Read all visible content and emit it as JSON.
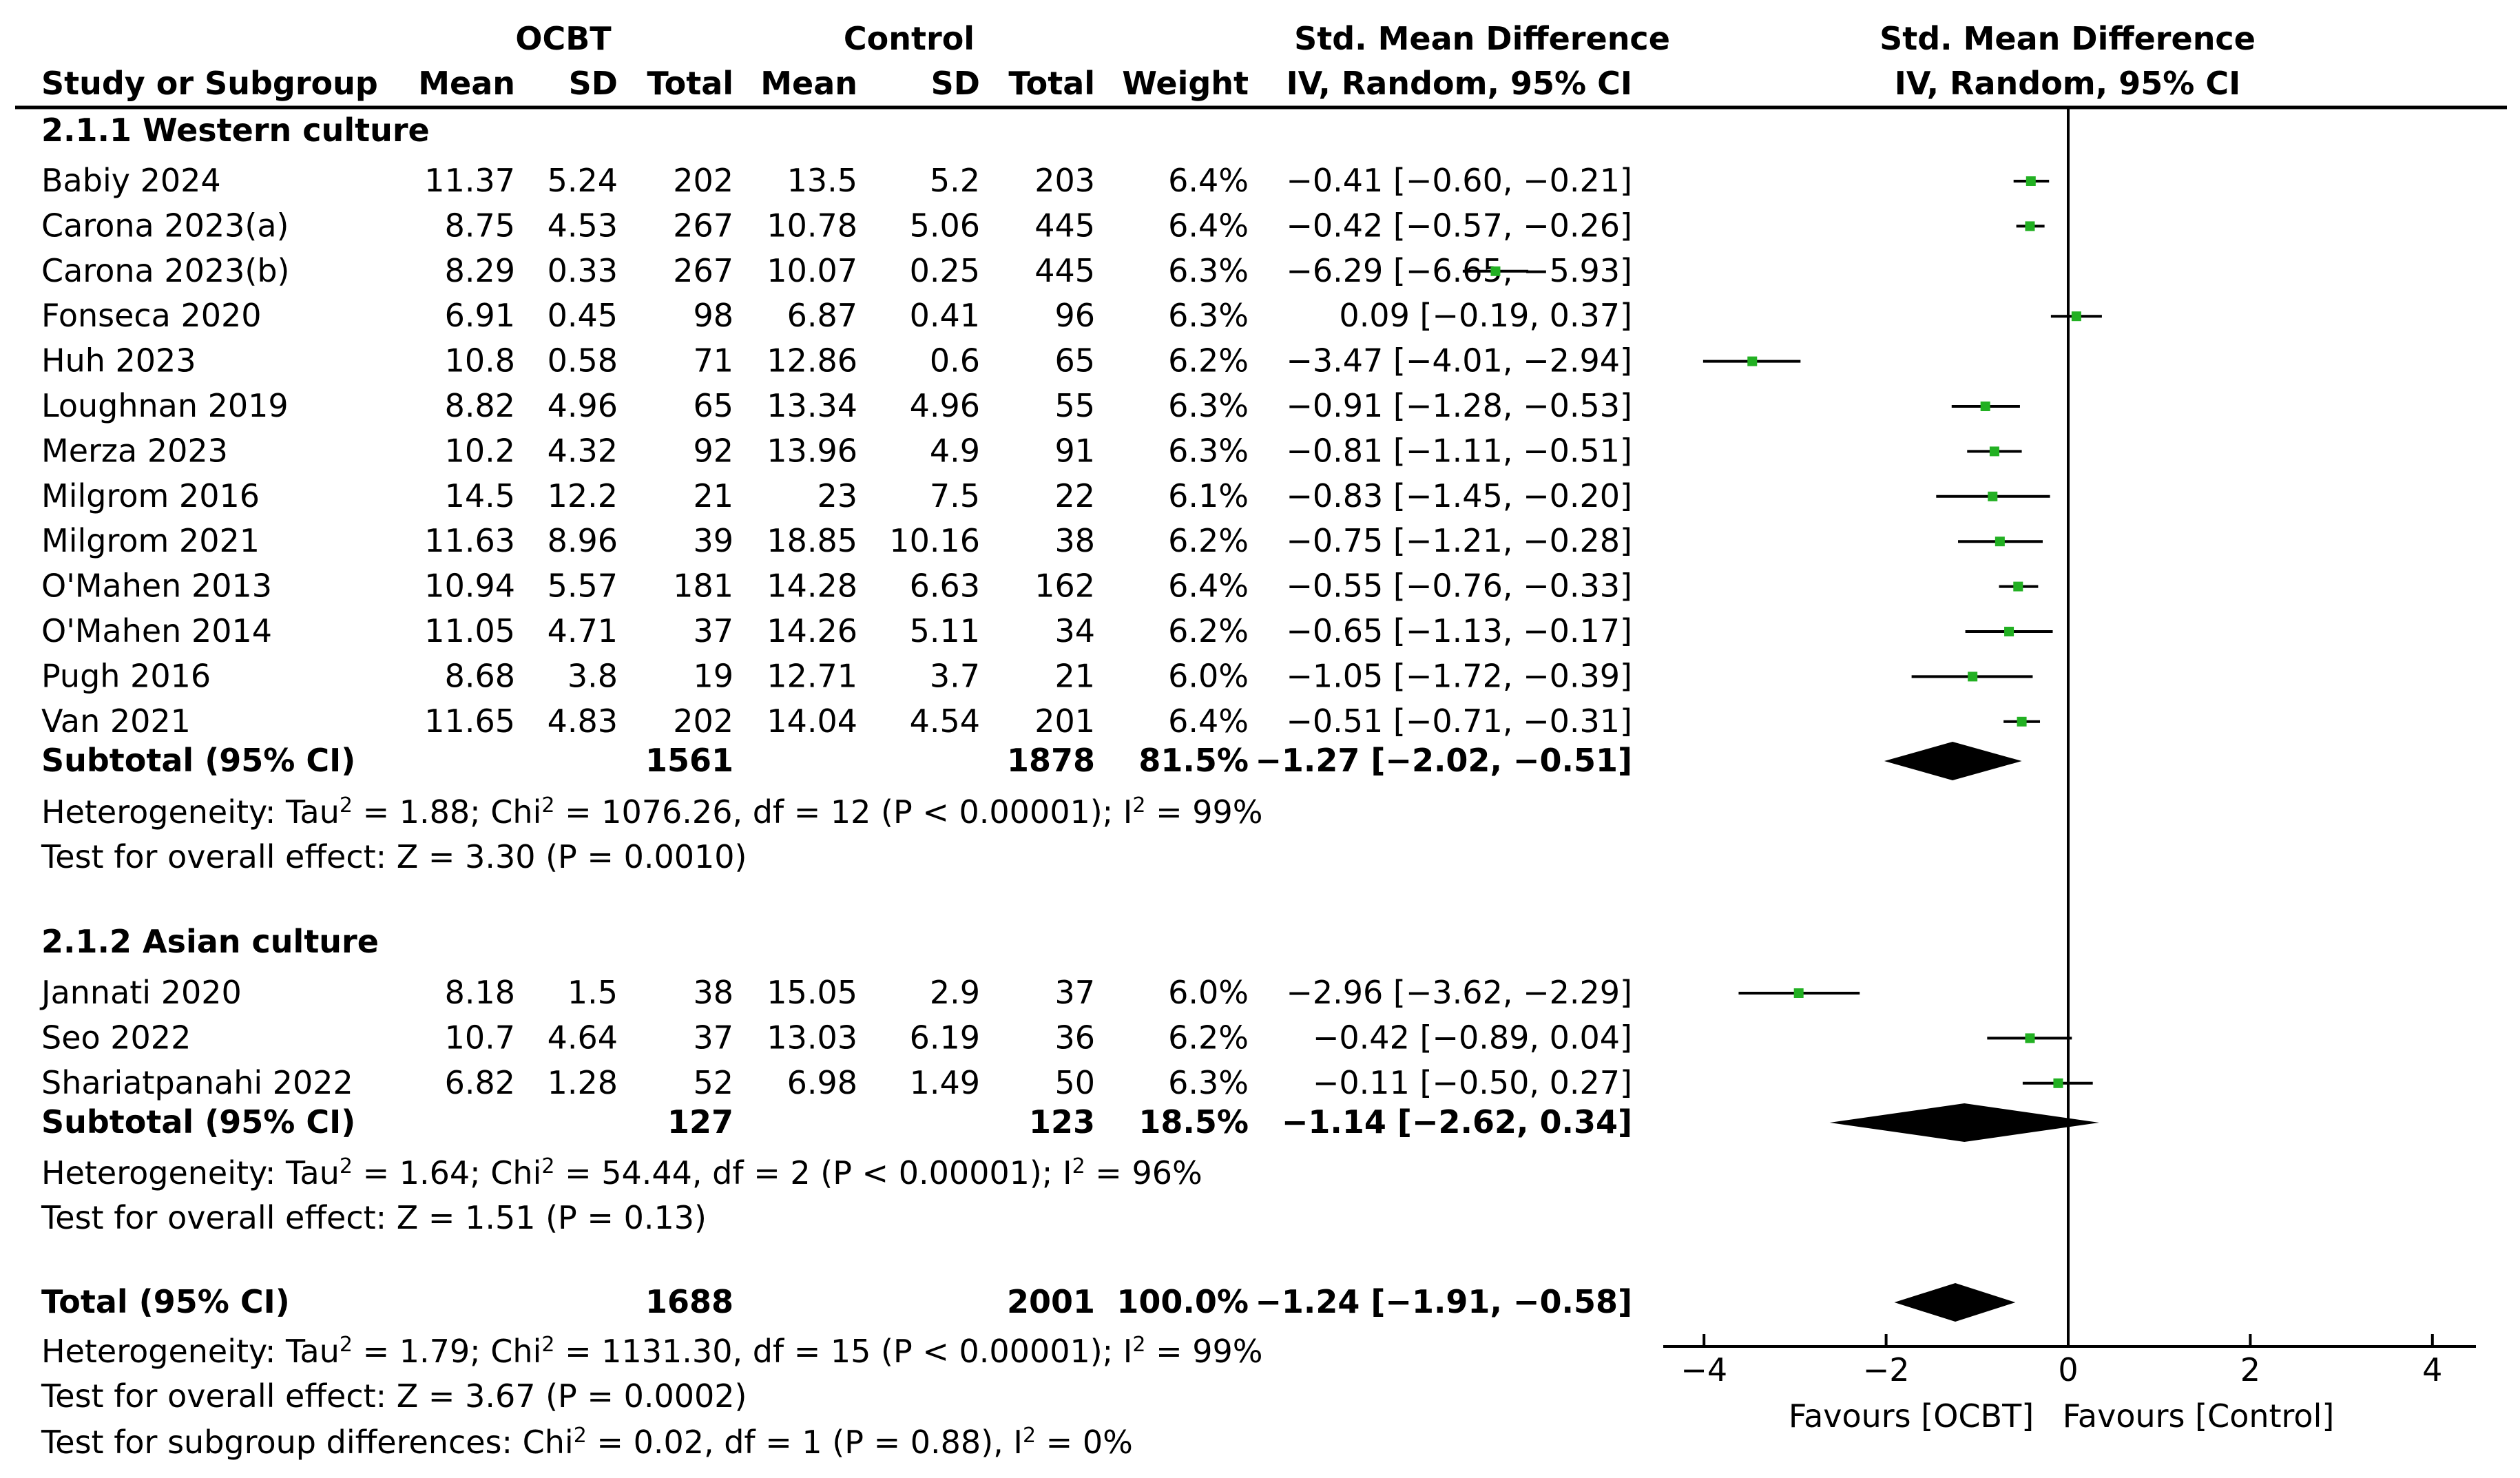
{
  "chart_data": {
    "type": "forest",
    "headers": {
      "group_treatment": "OCBT",
      "group_control": "Control",
      "smd_left_line1": "Std. Mean Difference",
      "smd_left_line2": "IV, Random, 95% CI",
      "smd_right_line1": "Std. Mean Difference",
      "smd_right_line2": "IV, Random, 95% CI",
      "study": "Study or Subgroup",
      "mean": "Mean",
      "sd": "SD",
      "total": "Total",
      "weight": "Weight"
    },
    "subgroups": [
      {
        "title": "2.1.1 Western culture",
        "studies": [
          {
            "name": "Babiy 2024",
            "m1": "11.37",
            "sd1": "5.24",
            "n1": "202",
            "m2": "13.5",
            "sd2": "5.2",
            "n2": "203",
            "weight": "6.4%",
            "ci_text": "−0.41 [−0.60, −0.21]",
            "est": -0.41,
            "lo": -0.6,
            "hi": -0.21
          },
          {
            "name": "Carona 2023(a)",
            "m1": "8.75",
            "sd1": "4.53",
            "n1": "267",
            "m2": "10.78",
            "sd2": "5.06",
            "n2": "445",
            "weight": "6.4%",
            "ci_text": "−0.42 [−0.57, −0.26]",
            "est": -0.42,
            "lo": -0.57,
            "hi": -0.26
          },
          {
            "name": "Carona 2023(b)",
            "m1": "8.29",
            "sd1": "0.33",
            "n1": "267",
            "m2": "10.07",
            "sd2": "0.25",
            "n2": "445",
            "weight": "6.3%",
            "ci_text": "−6.29 [−6.65, −5.93]",
            "est": -6.29,
            "lo": -6.65,
            "hi": -5.93
          },
          {
            "name": "Fonseca 2020",
            "m1": "6.91",
            "sd1": "0.45",
            "n1": "98",
            "m2": "6.87",
            "sd2": "0.41",
            "n2": "96",
            "weight": "6.3%",
            "ci_text": "0.09 [−0.19, 0.37]",
            "est": 0.09,
            "lo": -0.19,
            "hi": 0.37
          },
          {
            "name": "Huh 2023",
            "m1": "10.8",
            "sd1": "0.58",
            "n1": "71",
            "m2": "12.86",
            "sd2": "0.6",
            "n2": "65",
            "weight": "6.2%",
            "ci_text": "−3.47 [−4.01, −2.94]",
            "est": -3.47,
            "lo": -4.01,
            "hi": -2.94
          },
          {
            "name": "Loughnan 2019",
            "m1": "8.82",
            "sd1": "4.96",
            "n1": "65",
            "m2": "13.34",
            "sd2": "4.96",
            "n2": "55",
            "weight": "6.3%",
            "ci_text": "−0.91 [−1.28, −0.53]",
            "est": -0.91,
            "lo": -1.28,
            "hi": -0.53
          },
          {
            "name": "Merza 2023",
            "m1": "10.2",
            "sd1": "4.32",
            "n1": "92",
            "m2": "13.96",
            "sd2": "4.9",
            "n2": "91",
            "weight": "6.3%",
            "ci_text": "−0.81 [−1.11, −0.51]",
            "est": -0.81,
            "lo": -1.11,
            "hi": -0.51
          },
          {
            "name": "Milgrom 2016",
            "m1": "14.5",
            "sd1": "12.2",
            "n1": "21",
            "m2": "23",
            "sd2": "7.5",
            "n2": "22",
            "weight": "6.1%",
            "ci_text": "−0.83 [−1.45, −0.20]",
            "est": -0.83,
            "lo": -1.45,
            "hi": -0.2
          },
          {
            "name": "Milgrom 2021",
            "m1": "11.63",
            "sd1": "8.96",
            "n1": "39",
            "m2": "18.85",
            "sd2": "10.16",
            "n2": "38",
            "weight": "6.2%",
            "ci_text": "−0.75 [−1.21, −0.28]",
            "est": -0.75,
            "lo": -1.21,
            "hi": -0.28
          },
          {
            "name": "O'Mahen 2013",
            "m1": "10.94",
            "sd1": "5.57",
            "n1": "181",
            "m2": "14.28",
            "sd2": "6.63",
            "n2": "162",
            "weight": "6.4%",
            "ci_text": "−0.55 [−0.76, −0.33]",
            "est": -0.55,
            "lo": -0.76,
            "hi": -0.33
          },
          {
            "name": "O'Mahen 2014",
            "m1": "11.05",
            "sd1": "4.71",
            "n1": "37",
            "m2": "14.26",
            "sd2": "5.11",
            "n2": "34",
            "weight": "6.2%",
            "ci_text": "−0.65 [−1.13, −0.17]",
            "est": -0.65,
            "lo": -1.13,
            "hi": -0.17
          },
          {
            "name": "Pugh 2016",
            "m1": "8.68",
            "sd1": "3.8",
            "n1": "19",
            "m2": "12.71",
            "sd2": "3.7",
            "n2": "21",
            "weight": "6.0%",
            "ci_text": "−1.05 [−1.72, −0.39]",
            "est": -1.05,
            "lo": -1.72,
            "hi": -0.39
          },
          {
            "name": "Van 2021",
            "m1": "11.65",
            "sd1": "4.83",
            "n1": "202",
            "m2": "14.04",
            "sd2": "4.54",
            "n2": "201",
            "weight": "6.4%",
            "ci_text": "−0.51 [−0.71, −0.31]",
            "est": -0.51,
            "lo": -0.71,
            "hi": -0.31
          }
        ],
        "subtotal": {
          "label": "Subtotal (95% CI)",
          "n1": "1561",
          "n2": "1878",
          "weight": "81.5%",
          "ci_text": "−1.27 [−2.02, −0.51]",
          "est": -1.27,
          "lo": -2.02,
          "hi": -0.51
        },
        "heterogeneity": [
          "Heterogeneity: Tau",
          "2",
          " = 1.88; Chi",
          "2",
          " = 1076.26, df = 12 (P < 0.00001); I",
          "2",
          " = 99%"
        ],
        "overall_effect": "Test for overall effect: Z = 3.30 (P = 0.0010)"
      },
      {
        "title": "2.1.2 Asian culture",
        "studies": [
          {
            "name": "Jannati 2020",
            "m1": "8.18",
            "sd1": "1.5",
            "n1": "38",
            "m2": "15.05",
            "sd2": "2.9",
            "n2": "37",
            "weight": "6.0%",
            "ci_text": "−2.96 [−3.62, −2.29]",
            "est": -2.96,
            "lo": -3.62,
            "hi": -2.29
          },
          {
            "name": "Seo 2022",
            "m1": "10.7",
            "sd1": "4.64",
            "n1": "37",
            "m2": "13.03",
            "sd2": "6.19",
            "n2": "36",
            "weight": "6.2%",
            "ci_text": "−0.42 [−0.89, 0.04]",
            "est": -0.42,
            "lo": -0.89,
            "hi": 0.04
          },
          {
            "name": "Shariatpanahi 2022",
            "m1": "6.82",
            "sd1": "1.28",
            "n1": "52",
            "m2": "6.98",
            "sd2": "1.49",
            "n2": "50",
            "weight": "6.3%",
            "ci_text": "−0.11 [−0.50, 0.27]",
            "est": -0.11,
            "lo": -0.5,
            "hi": 0.27
          }
        ],
        "subtotal": {
          "label": "Subtotal (95% CI)",
          "n1": "127",
          "n2": "123",
          "weight": "18.5%",
          "ci_text": "−1.14 [−2.62, 0.34]",
          "est": -1.14,
          "lo": -2.62,
          "hi": 0.34
        },
        "heterogeneity": [
          "Heterogeneity: Tau",
          "2",
          " = 1.64; Chi",
          "2",
          " = 54.44, df = 2 (P < 0.00001); I",
          "2",
          " = 96%"
        ],
        "overall_effect": "Test for overall effect: Z = 1.51 (P = 0.13)"
      }
    ],
    "total": {
      "label": "Total (95% CI)",
      "n1": "1688",
      "n2": "2001",
      "weight": "100.0%",
      "ci_text": "−1.24 [−1.91, −0.58]",
      "est": -1.24,
      "lo": -1.91,
      "hi": -0.58
    },
    "total_heterogeneity": [
      "Heterogeneity: Tau",
      "2",
      " = 1.79; Chi",
      "2",
      " = 1131.30, df = 15 (P < 0.00001); I",
      "2",
      " = 99%"
    ],
    "total_overall_effect": "Test for overall effect: Z = 3.67 (P = 0.0002)",
    "subgroup_differences": [
      "Test for subgroup differences: Chi",
      "2",
      " = 0.02, df = 1 (P = 0.88), I",
      "2",
      " = 0%"
    ],
    "axis": {
      "ticks": [
        -4,
        -2,
        0,
        2,
        4
      ],
      "tick_labels": [
        "−4",
        "−2",
        "0",
        "2",
        "4"
      ],
      "favours_left": "Favours [OCBT]",
      "favours_right": "Favours [Control]"
    },
    "colors": {
      "study_marker": "#22b022",
      "line": "#000000",
      "diamond": "#000000"
    }
  }
}
